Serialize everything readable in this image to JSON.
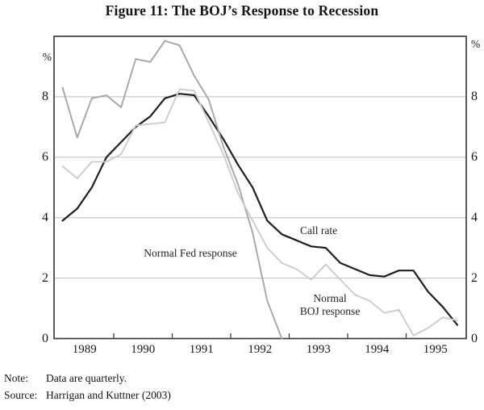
{
  "title": "Figure 11: The BOJ’s Response to Recession",
  "chart_data": {
    "type": "line",
    "title": "Figure 11: The BOJ’s Response to Recession",
    "frequency": "quarterly",
    "x_axis": {
      "start_year": 1989,
      "end_year": 1996,
      "tick_years": [
        1990,
        1991,
        1992,
        1993,
        1994,
        1995
      ],
      "year_labels": [
        "1989",
        "1990",
        "1991",
        "1992",
        "1993",
        "1994",
        "1995"
      ]
    },
    "y_axis": {
      "min": 0,
      "max": 10,
      "unit": "%",
      "tick_values": [
        8,
        6,
        4,
        2,
        0
      ],
      "tick_labels": [
        "8",
        "6",
        "4",
        "2",
        "0"
      ],
      "grid": true
    },
    "series": [
      {
        "name": "Call rate",
        "color": "#1f1f1f",
        "stroke_width": 2.2,
        "start": "1989Q1",
        "values": [
          3.9,
          4.3,
          5.0,
          6.0,
          6.5,
          7.0,
          7.35,
          7.95,
          8.1,
          8.05,
          7.35,
          6.6,
          5.75,
          5.0,
          3.9,
          3.45,
          3.25,
          3.05,
          3.0,
          2.5,
          2.3,
          2.1,
          2.05,
          2.25,
          2.25,
          1.55,
          1.05,
          0.45
        ]
      },
      {
        "name": "Normal Fed response",
        "color": "#a6a6a6",
        "stroke_width": 1.9,
        "start": "1989Q1",
        "values": [
          8.3,
          6.65,
          7.95,
          8.05,
          7.65,
          9.25,
          9.15,
          9.85,
          9.7,
          8.7,
          7.9,
          6.35,
          5.1,
          3.5,
          1.25,
          0.0
        ]
      },
      {
        "name": "Normal BOJ response",
        "color": "#cccccc",
        "stroke_width": 1.9,
        "start": "1989Q1",
        "values": [
          5.7,
          5.3,
          5.85,
          5.85,
          6.1,
          7.05,
          7.1,
          7.15,
          8.25,
          8.2,
          7.15,
          6.1,
          4.8,
          3.9,
          3.0,
          2.5,
          2.3,
          1.95,
          2.45,
          1.95,
          1.45,
          1.25,
          0.85,
          0.95,
          0.1,
          0.35,
          0.7,
          0.6
        ]
      }
    ],
    "grid_color": "#bdbdbd",
    "frame_color": "#3d3d3d"
  },
  "labels": {
    "call_rate": "Call rate",
    "fed": "Normal Fed response",
    "boj_line1": "Normal",
    "boj_line2": "BOJ response",
    "percent": "%"
  },
  "note": {
    "label": "Note:",
    "text": "Data are quarterly."
  },
  "source": {
    "label": "Source:",
    "text": "Harrigan and Kuttner (2003)"
  }
}
